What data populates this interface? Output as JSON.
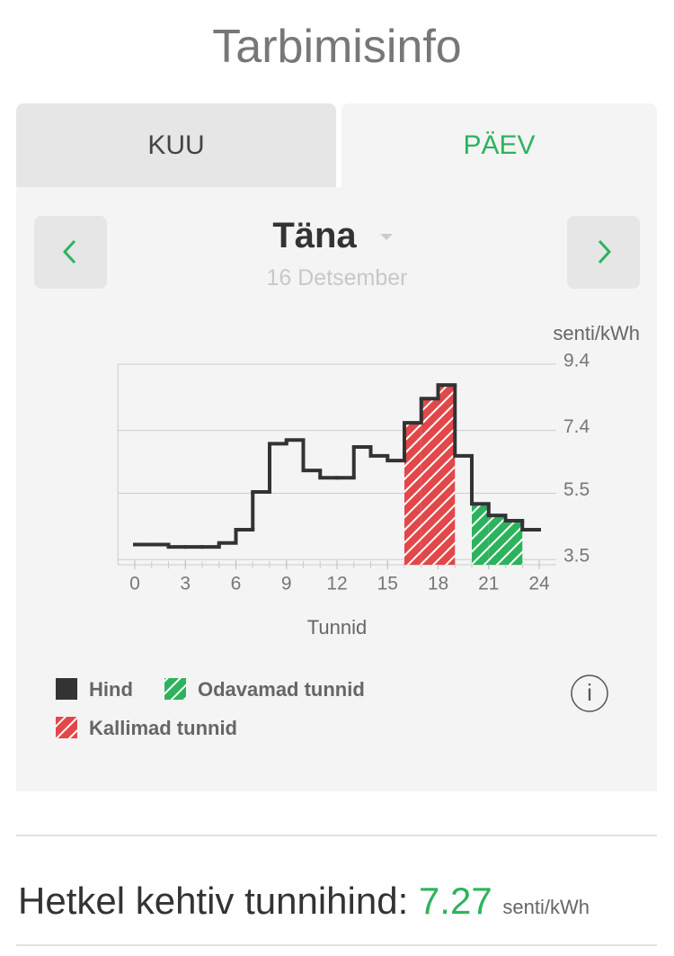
{
  "header": {
    "title": "Tarbimisinfo"
  },
  "tabs": [
    "KUU",
    "PÄEV"
  ],
  "day": {
    "label": "Täna",
    "date": "16 Detsember"
  },
  "chart_data": {
    "type": "step",
    "x_label": "Tunnid",
    "y_label": "senti/kWh",
    "x": [
      0,
      1,
      2,
      3,
      4,
      5,
      6,
      7,
      8,
      9,
      10,
      11,
      12,
      13,
      14,
      15,
      16,
      17,
      18,
      19,
      20,
      21,
      22,
      23
    ],
    "series": [
      {
        "name": "Hind",
        "color": "#333333",
        "values": [
          3.95,
          3.95,
          3.88,
          3.88,
          3.88,
          4.0,
          4.4,
          5.54,
          7.0,
          7.11,
          6.19,
          5.97,
          5.97,
          6.9,
          6.63,
          6.49,
          7.63,
          8.36,
          8.77,
          6.63,
          5.18,
          4.83,
          4.67,
          4.4
        ]
      },
      {
        "name": "Odavamad tunnid",
        "color": "#2db35d",
        "values": [
          null,
          null,
          null,
          null,
          null,
          null,
          null,
          null,
          null,
          null,
          null,
          null,
          null,
          null,
          null,
          null,
          null,
          null,
          null,
          null,
          5.18,
          4.83,
          4.67,
          null
        ]
      },
      {
        "name": "Kallimad tunnid",
        "color": "#e2474a",
        "values": [
          null,
          null,
          null,
          null,
          null,
          null,
          null,
          null,
          null,
          null,
          null,
          null,
          null,
          null,
          null,
          null,
          7.63,
          8.36,
          8.77,
          null,
          null,
          null,
          null,
          null
        ]
      }
    ],
    "xlim": [
      -1,
      25
    ],
    "ylim": [
      3.34,
      9.4
    ],
    "xticks": [
      0,
      3,
      6,
      9,
      12,
      15,
      18,
      21,
      24
    ],
    "yticks": [
      3.5,
      5.5,
      7.4,
      9.4
    ],
    "grid": true
  },
  "current": {
    "label": "Hetkel kehtiv tunnihind:",
    "value": 7.27,
    "unit": "senti/kWh"
  }
}
